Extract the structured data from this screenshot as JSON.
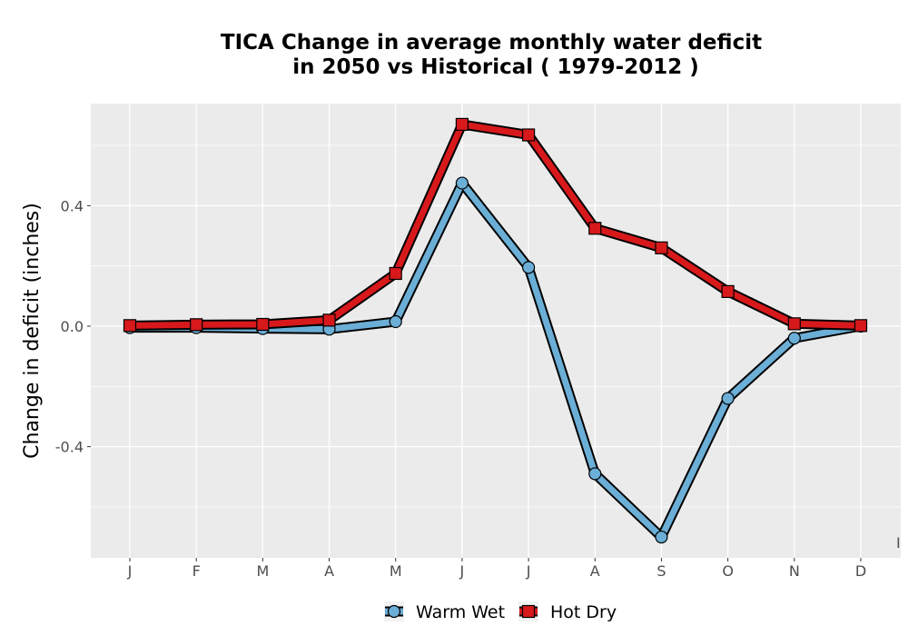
{
  "chart_data": {
    "type": "line",
    "title_line1": "TICA  Change in average monthly water deficit",
    "title_line2": "in 2050 vs Historical ( 1979-2012 )",
    "xlabel": "",
    "ylabel": "Change in deficit (inches)",
    "categories": [
      "J",
      "F",
      "M",
      "A",
      "M",
      "J",
      "J",
      "A",
      "S",
      "O",
      "N",
      "D"
    ],
    "y_ticks": [
      {
        "value": -0.4,
        "label": "-0.4"
      },
      {
        "value": 0.0,
        "label": "0.0"
      },
      {
        "value": 0.4,
        "label": "0.4"
      }
    ],
    "ylim": [
      -0.77,
      0.74
    ],
    "grid": true,
    "legend_position": "bottom",
    "series": [
      {
        "name": "Warm Wet",
        "color": "#6baed6",
        "marker": "circle",
        "values": [
          -0.005,
          -0.005,
          -0.008,
          -0.01,
          0.015,
          0.475,
          0.195,
          -0.49,
          -0.7,
          -0.24,
          -0.04,
          0.0
        ]
      },
      {
        "name": "Hot Dry",
        "color": "#d7191c",
        "marker": "square",
        "values": [
          0.002,
          0.005,
          0.006,
          0.02,
          0.175,
          0.67,
          0.635,
          0.325,
          0.26,
          0.115,
          0.008,
          0.002
        ]
      }
    ],
    "stray_mark": "I"
  }
}
